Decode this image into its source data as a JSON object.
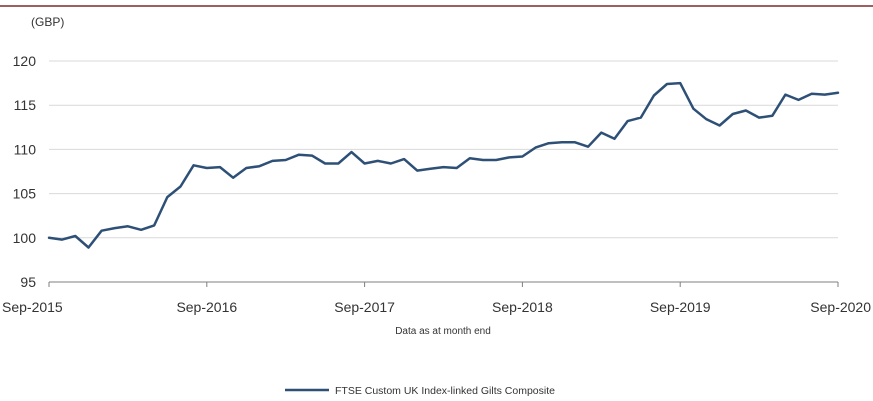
{
  "chart_data": {
    "type": "line",
    "ylabel": "(GBP)",
    "xlabel": "Data as at month end",
    "ylim": [
      95,
      120
    ],
    "yticks": [
      95,
      100,
      105,
      110,
      115,
      120
    ],
    "xtick_labels": [
      "Sep-2015",
      "Sep-2016",
      "Sep-2017",
      "Sep-2018",
      "Sep-2019",
      "Sep-2020"
    ],
    "grid": "horizontal",
    "legend_position": "bottom-center",
    "colors": {
      "line": "#2e5077",
      "grid": "#d9d9d9",
      "axis": "#7f7f7f",
      "top_rule": "#7b2c2c"
    },
    "series": [
      {
        "name": "FTSE Custom UK Index-linked Gilts Composite",
        "values": [
          100.0,
          99.8,
          100.2,
          98.9,
          100.8,
          101.1,
          101.3,
          100.9,
          101.4,
          104.6,
          105.8,
          108.2,
          107.9,
          108.0,
          106.8,
          107.9,
          108.1,
          108.7,
          108.8,
          109.4,
          109.3,
          108.4,
          108.4,
          109.7,
          108.4,
          108.7,
          108.4,
          108.9,
          107.6,
          107.8,
          108.0,
          107.9,
          109.0,
          108.8,
          108.8,
          109.1,
          109.2,
          110.2,
          110.7,
          110.8,
          110.8,
          110.3,
          111.9,
          111.2,
          113.2,
          113.6,
          116.1,
          117.4,
          117.5,
          114.6,
          113.4,
          112.7,
          114.0,
          114.4,
          113.6,
          113.8,
          116.2,
          115.6,
          116.3,
          116.2,
          116.4
        ]
      }
    ]
  }
}
